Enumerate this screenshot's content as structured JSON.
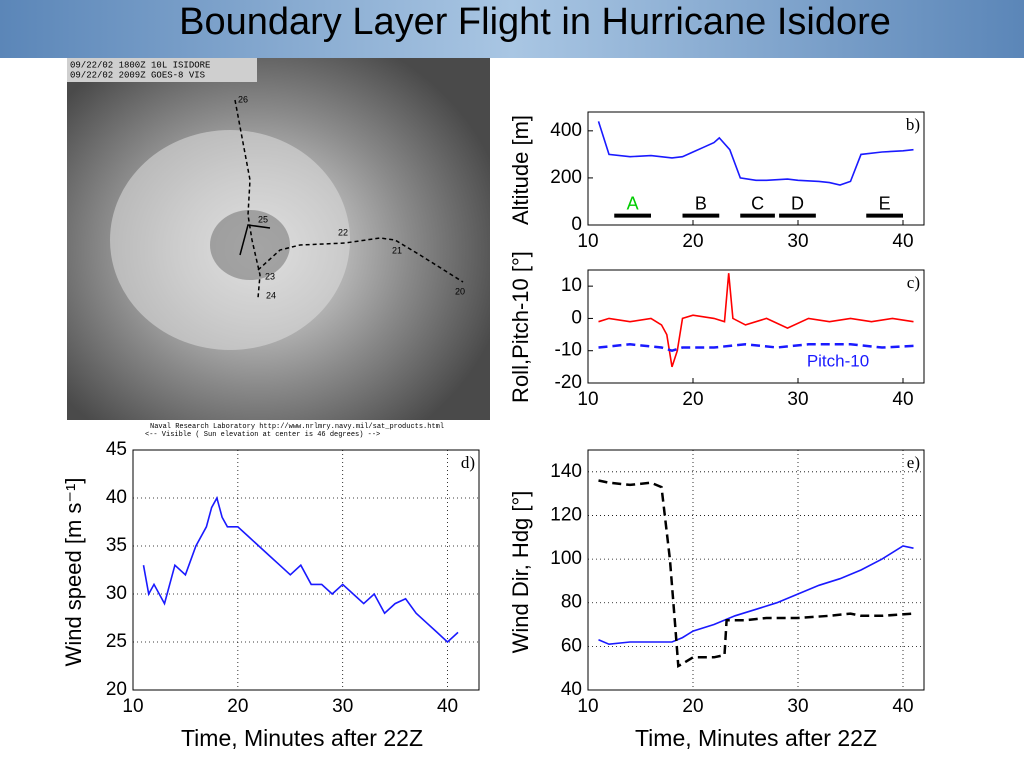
{
  "title": "Boundary Layer Flight in Hurricane Isidore",
  "satellite": {
    "header": [
      "09/22/02 1800Z  10L ISIDORE",
      "09/22/02 2009Z  GOES-8 VIS"
    ],
    "footer": [
      "Naval Research Laboratory  http://www.nrlmry.navy.mil/sat_products.html",
      "<--   Visible  ( Sun elevation at center is 46 degrees)   -->"
    ],
    "track_labels": [
      "26",
      "25",
      "22",
      "21",
      "23",
      "24",
      "20"
    ]
  },
  "chart_data": [
    {
      "type": "line",
      "panel": "b)",
      "ylabel": "Altitude [m]",
      "xlim": [
        10,
        42
      ],
      "xticks": [
        10,
        20,
        30,
        40
      ],
      "ylim": [
        0,
        480
      ],
      "yticks": [
        0,
        200,
        400
      ],
      "grid": false,
      "series": [
        {
          "color": "#1a1aff",
          "dashed": false,
          "x": [
            11,
            12,
            14,
            16,
            18,
            19,
            20,
            21,
            22,
            22.5,
            23.5,
            24.5,
            26,
            27,
            29,
            30,
            32,
            33,
            34,
            35,
            36,
            38,
            40,
            41
          ],
          "values": [
            440,
            300,
            290,
            295,
            285,
            290,
            310,
            330,
            350,
            370,
            320,
            200,
            190,
            190,
            195,
            190,
            185,
            180,
            170,
            185,
            300,
            310,
            315,
            320
          ]
        }
      ],
      "segments": [
        {
          "label": "A",
          "color": "#00cc00",
          "x": [
            12.5,
            16
          ],
          "y": 40
        },
        {
          "label": "B",
          "color": "#000000",
          "x": [
            19,
            22.5
          ],
          "y": 40
        },
        {
          "label": "C",
          "color": "#000000",
          "x": [
            24.5,
            27.8
          ],
          "y": 40
        },
        {
          "label": "D",
          "color": "#000000",
          "x": [
            28.2,
            31.7
          ],
          "y": 40
        },
        {
          "label": "E",
          "color": "#000000",
          "x": [
            36.5,
            40
          ],
          "y": 40
        }
      ]
    },
    {
      "type": "line",
      "panel": "c)",
      "ylabel": "Roll,Pitch-10 [°]",
      "xlim": [
        10,
        42
      ],
      "xticks": [
        10,
        20,
        30,
        40
      ],
      "ylim": [
        -20,
        15
      ],
      "yticks": [
        -20,
        -10,
        0,
        10
      ],
      "grid": false,
      "series": [
        {
          "color": "#ff0000",
          "dashed": false,
          "x": [
            11,
            12,
            14,
            16,
            17,
            17.5,
            18,
            18.5,
            19,
            20,
            22,
            23,
            23.4,
            23.8,
            25,
            27,
            29,
            31,
            33,
            35,
            37,
            39,
            41
          ],
          "values": [
            -1,
            0,
            -1,
            0,
            -2,
            -5,
            -15,
            -10,
            0,
            1,
            0,
            -1,
            14,
            0,
            -2,
            0,
            -3,
            0,
            -1,
            0,
            -1,
            0,
            -1
          ]
        },
        {
          "name": "Pitch-10",
          "color": "#1a1aff",
          "dashed": true,
          "x": [
            11,
            14,
            17,
            18,
            19,
            22,
            25,
            28,
            31,
            35,
            38,
            41
          ],
          "values": [
            -9,
            -8,
            -9,
            -10,
            -9,
            -9,
            -8,
            -9,
            -8,
            -8,
            -9,
            -8.5
          ]
        }
      ]
    },
    {
      "type": "line",
      "panel": "d)",
      "ylabel": "Wind speed [m s⁻¹]",
      "xlabel": "Time, Minutes after 22Z",
      "xlim": [
        10,
        43
      ],
      "xticks": [
        10,
        20,
        30,
        40
      ],
      "ylim": [
        20,
        45
      ],
      "yticks": [
        20,
        25,
        30,
        35,
        40,
        45
      ],
      "grid": true,
      "series": [
        {
          "color": "#1a1aff",
          "dashed": false,
          "x": [
            11,
            11.5,
            12,
            13,
            14,
            15,
            16,
            17,
            17.5,
            18,
            18.5,
            19,
            20,
            21,
            22,
            23,
            24,
            25,
            26,
            27,
            28,
            29,
            30,
            31,
            32,
            33,
            34,
            35,
            36,
            37,
            38,
            39,
            40,
            41
          ],
          "values": [
            33,
            30,
            31,
            29,
            33,
            32,
            35,
            37,
            39,
            40,
            38,
            37,
            37,
            36,
            35,
            34,
            33,
            32,
            33,
            31,
            31,
            30,
            31,
            30,
            29,
            30,
            28,
            29,
            29.5,
            28,
            27,
            26,
            25,
            26
          ]
        }
      ]
    },
    {
      "type": "line",
      "panel": "e)",
      "ylabel": "Wind Dir, Hdg [°]",
      "xlabel": "Time, Minutes after 22Z",
      "xlim": [
        10,
        42
      ],
      "xticks": [
        10,
        20,
        30,
        40
      ],
      "ylim": [
        40,
        150
      ],
      "yticks": [
        40,
        60,
        80,
        100,
        120,
        140
      ],
      "grid": true,
      "series": [
        {
          "color": "#1a1aff",
          "dashed": false,
          "x": [
            11,
            12,
            14,
            16,
            18,
            19,
            20,
            22,
            24,
            26,
            28,
            30,
            32,
            34,
            36,
            38,
            40,
            41
          ],
          "values": [
            63,
            61,
            62,
            62,
            62,
            64,
            67,
            70,
            74,
            77,
            80,
            84,
            88,
            91,
            95,
            100,
            106,
            105
          ]
        },
        {
          "color": "#000000",
          "dashed": true,
          "x": [
            11,
            12,
            14,
            16,
            17,
            17.8,
            18.3,
            18.6,
            19,
            20,
            22,
            23,
            23.2,
            25,
            27,
            30,
            33,
            35,
            36,
            38,
            41
          ],
          "values": [
            136,
            135,
            134,
            135,
            133,
            100,
            70,
            51,
            52,
            55,
            55,
            56,
            72,
            72,
            73,
            73,
            74,
            75,
            74,
            74,
            75
          ]
        }
      ]
    }
  ]
}
